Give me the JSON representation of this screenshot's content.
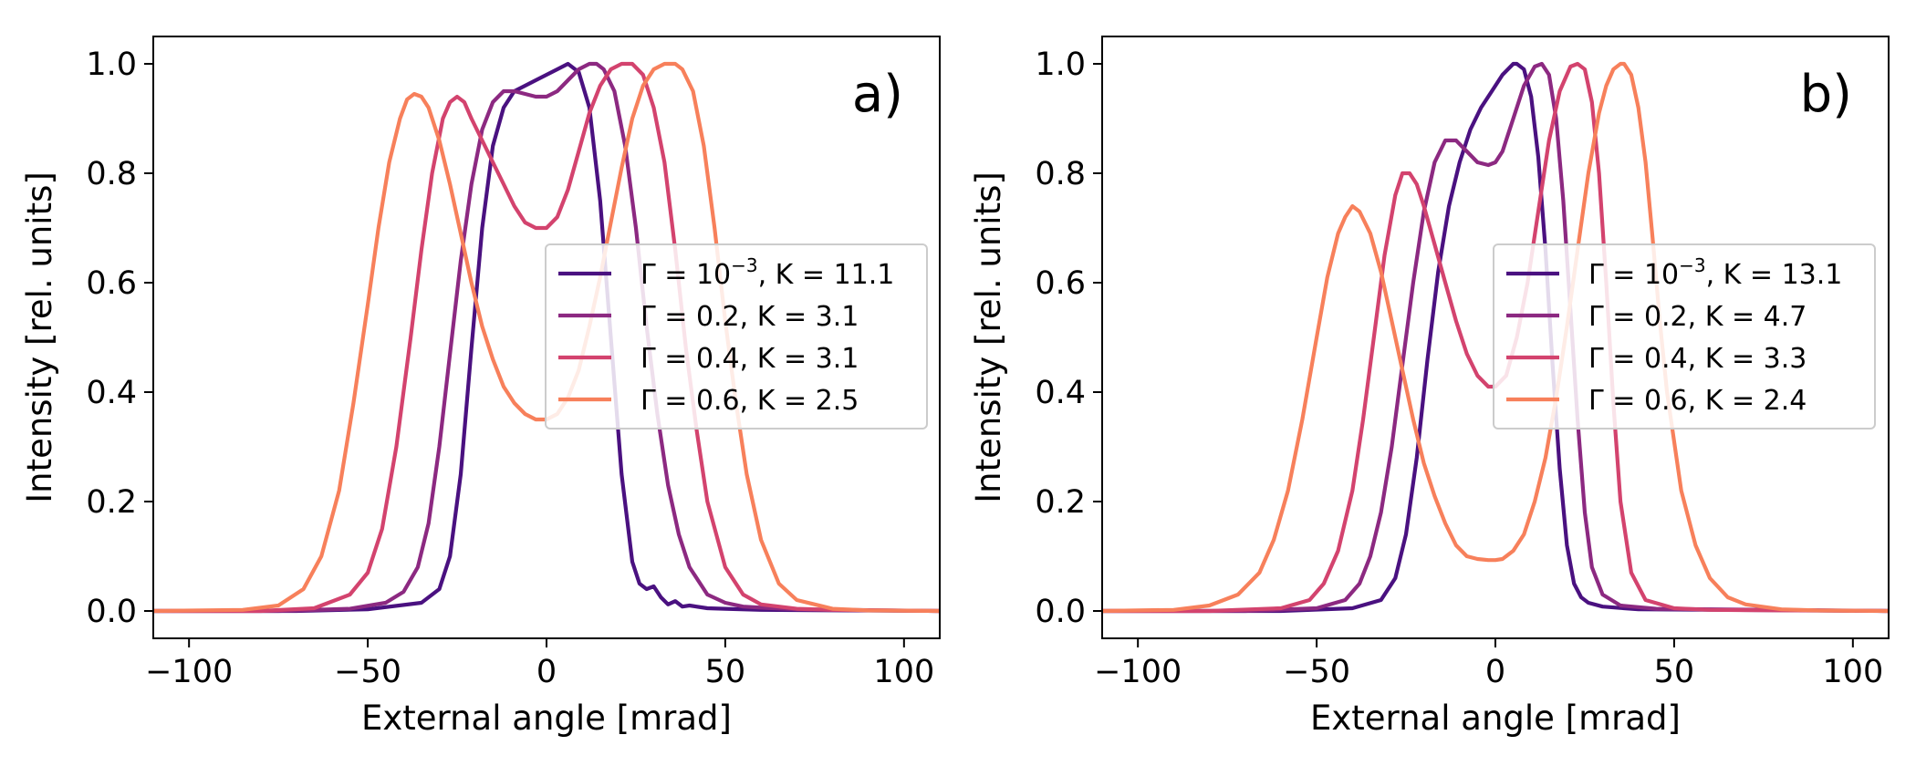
{
  "chart_data": [
    {
      "type": "line",
      "panel_label": "a)",
      "xlabel": "External angle [mrad]",
      "ylabel": "Intensity [rel. units]",
      "xlim": [
        -110,
        110
      ],
      "ylim": [
        -0.05,
        1.05
      ],
      "xticks": [
        -100,
        -50,
        0,
        50,
        100
      ],
      "xtick_labels": [
        "−100",
        "−50",
        "0",
        "50",
        "100"
      ],
      "yticks": [
        0.0,
        0.2,
        0.4,
        0.6,
        0.8,
        1.0
      ],
      "ytick_labels": [
        "0.0",
        "0.2",
        "0.4",
        "0.6",
        "0.8",
        "1.0"
      ],
      "grid": false,
      "legend_position": "center-right",
      "series": [
        {
          "gamma": "10",
          "exp": "−3",
          "name": "Γ = 10⁻³, K = 11.1",
          "label_suffix": ", K = 11.1",
          "color": "#4a1180",
          "x": [
            -110,
            -70,
            -50,
            -35,
            -30,
            -27,
            -24,
            -21,
            -18,
            -15,
            -12,
            -9,
            -6,
            -3,
            0,
            3,
            6,
            9,
            12,
            15,
            18,
            21,
            24,
            26,
            28,
            30,
            32,
            34,
            36,
            38,
            40,
            45,
            50,
            60,
            110
          ],
          "y": [
            0,
            0,
            0.003,
            0.015,
            0.04,
            0.1,
            0.25,
            0.48,
            0.7,
            0.85,
            0.92,
            0.95,
            0.96,
            0.97,
            0.98,
            0.99,
            1.0,
            0.985,
            0.92,
            0.75,
            0.5,
            0.25,
            0.09,
            0.05,
            0.04,
            0.045,
            0.025,
            0.012,
            0.018,
            0.008,
            0.01,
            0.005,
            0.004,
            0.002,
            0
          ]
        },
        {
          "gamma": "0.2",
          "exp": "",
          "name": "Γ = 0.2, K = 3.1",
          "label_suffix": ", K = 3.1",
          "color": "#8c2981",
          "x": [
            -110,
            -75,
            -55,
            -45,
            -40,
            -36,
            -33,
            -30,
            -27,
            -24,
            -21,
            -18,
            -15,
            -12,
            -9,
            -6,
            -3,
            0,
            3,
            6,
            9,
            12,
            14,
            16,
            19,
            22,
            25,
            28,
            31,
            34,
            37,
            40,
            45,
            50,
            55,
            60,
            70,
            110
          ],
          "y": [
            0,
            0,
            0.004,
            0.015,
            0.035,
            0.08,
            0.16,
            0.3,
            0.47,
            0.64,
            0.78,
            0.88,
            0.93,
            0.95,
            0.95,
            0.945,
            0.94,
            0.94,
            0.95,
            0.97,
            0.99,
            1.0,
            1.0,
            0.99,
            0.95,
            0.85,
            0.7,
            0.52,
            0.36,
            0.23,
            0.14,
            0.08,
            0.03,
            0.015,
            0.008,
            0.006,
            0.003,
            0
          ]
        },
        {
          "gamma": "0.4",
          "exp": "",
          "name": "Γ = 0.4, K = 3.1",
          "label_suffix": ", K = 3.1",
          "color": "#d3436e",
          "x": [
            -110,
            -80,
            -65,
            -55,
            -50,
            -46,
            -42,
            -38,
            -35,
            -32,
            -29,
            -27,
            -25,
            -23,
            -21,
            -18,
            -15,
            -12,
            -9,
            -6,
            -3,
            0,
            3,
            6,
            9,
            12,
            15,
            18,
            21,
            24,
            27,
            30,
            33,
            36,
            39,
            42,
            45,
            50,
            55,
            60,
            70,
            80,
            110
          ],
          "y": [
            0,
            0,
            0.005,
            0.03,
            0.07,
            0.15,
            0.3,
            0.5,
            0.66,
            0.8,
            0.9,
            0.93,
            0.94,
            0.93,
            0.9,
            0.86,
            0.82,
            0.78,
            0.74,
            0.71,
            0.7,
            0.7,
            0.72,
            0.77,
            0.84,
            0.91,
            0.96,
            0.99,
            1.0,
            1.0,
            0.98,
            0.92,
            0.82,
            0.66,
            0.48,
            0.33,
            0.2,
            0.08,
            0.03,
            0.012,
            0.004,
            0.002,
            0
          ]
        },
        {
          "gamma": "0.6",
          "exp": "",
          "name": "Γ = 0.6, K = 2.5",
          "label_suffix": ", K = 2.5",
          "color": "#f7805b",
          "x": [
            -110,
            -85,
            -75,
            -68,
            -63,
            -58,
            -54,
            -50,
            -47,
            -44,
            -41,
            -39,
            -37,
            -35,
            -33,
            -30,
            -27,
            -24,
            -21,
            -18,
            -15,
            -12,
            -9,
            -6,
            -3,
            0,
            3,
            6,
            9,
            12,
            15,
            18,
            21,
            24,
            27,
            30,
            33,
            35,
            36,
            38,
            41,
            44,
            47,
            50,
            53,
            56,
            60,
            65,
            70,
            80,
            90,
            110
          ],
          "y": [
            0,
            0.002,
            0.01,
            0.04,
            0.1,
            0.22,
            0.38,
            0.56,
            0.7,
            0.82,
            0.9,
            0.935,
            0.945,
            0.94,
            0.92,
            0.86,
            0.78,
            0.69,
            0.6,
            0.52,
            0.46,
            0.41,
            0.38,
            0.36,
            0.35,
            0.35,
            0.36,
            0.39,
            0.44,
            0.52,
            0.61,
            0.71,
            0.81,
            0.9,
            0.96,
            0.99,
            1.0,
            1.0,
            1.0,
            0.99,
            0.95,
            0.85,
            0.7,
            0.53,
            0.38,
            0.25,
            0.13,
            0.05,
            0.02,
            0.004,
            0.001,
            0
          ]
        }
      ]
    },
    {
      "type": "line",
      "panel_label": "b)",
      "xlabel": "External angle [mrad]",
      "ylabel": "Intensity [rel. units]",
      "xlim": [
        -110,
        110
      ],
      "ylim": [
        -0.05,
        1.05
      ],
      "xticks": [
        -100,
        -50,
        0,
        50,
        100
      ],
      "xtick_labels": [
        "−100",
        "−50",
        "0",
        "50",
        "100"
      ],
      "yticks": [
        0.0,
        0.2,
        0.4,
        0.6,
        0.8,
        1.0
      ],
      "ytick_labels": [
        "0.0",
        "0.2",
        "0.4",
        "0.6",
        "0.8",
        "1.0"
      ],
      "grid": false,
      "legend_position": "center-right",
      "series": [
        {
          "gamma": "10",
          "exp": "−3",
          "name": "Γ = 10⁻³, K = 13.1",
          "label_suffix": ", K = 13.1",
          "color": "#4a1180",
          "x": [
            -110,
            -60,
            -40,
            -32,
            -28,
            -25,
            -22,
            -19,
            -16,
            -13,
            -10,
            -7,
            -4,
            -1,
            2,
            5,
            6,
            8,
            10,
            12,
            14,
            16,
            18,
            20,
            22,
            24,
            26,
            30,
            40,
            110
          ],
          "y": [
            0,
            0,
            0.005,
            0.02,
            0.06,
            0.14,
            0.28,
            0.46,
            0.62,
            0.74,
            0.82,
            0.88,
            0.92,
            0.95,
            0.98,
            1.0,
            1.0,
            0.99,
            0.94,
            0.83,
            0.66,
            0.45,
            0.26,
            0.12,
            0.05,
            0.025,
            0.015,
            0.008,
            0.003,
            0
          ]
        },
        {
          "gamma": "0.2",
          "exp": "",
          "name": "Γ = 0.2, K = 4.7",
          "label_suffix": ", K = 4.7",
          "color": "#8c2981",
          "x": [
            -110,
            -70,
            -50,
            -42,
            -38,
            -35,
            -32,
            -29,
            -26,
            -23,
            -20,
            -17,
            -14,
            -11,
            -8,
            -5,
            -2,
            0,
            2,
            5,
            8,
            11,
            13,
            15,
            17,
            19,
            21,
            23,
            25,
            27,
            30,
            35,
            45,
            110
          ],
          "y": [
            0,
            0,
            0.005,
            0.02,
            0.05,
            0.1,
            0.18,
            0.3,
            0.45,
            0.6,
            0.73,
            0.82,
            0.86,
            0.86,
            0.84,
            0.82,
            0.815,
            0.82,
            0.84,
            0.9,
            0.96,
            0.995,
            1.0,
            0.98,
            0.9,
            0.75,
            0.55,
            0.35,
            0.18,
            0.08,
            0.03,
            0.01,
            0.004,
            0
          ]
        },
        {
          "gamma": "0.4",
          "exp": "",
          "name": "Γ = 0.4, K = 3.3",
          "label_suffix": ", K = 3.3",
          "color": "#d3436e",
          "x": [
            -110,
            -80,
            -60,
            -52,
            -48,
            -44,
            -40,
            -37,
            -34,
            -31,
            -28,
            -26,
            -24,
            -22,
            -20,
            -17,
            -14,
            -11,
            -8,
            -5,
            -2,
            0,
            3,
            6,
            9,
            12,
            15,
            18,
            21,
            23,
            25,
            27,
            29,
            31,
            33,
            35,
            38,
            42,
            50,
            60,
            110
          ],
          "y": [
            0,
            0,
            0.005,
            0.02,
            0.05,
            0.11,
            0.22,
            0.35,
            0.5,
            0.65,
            0.76,
            0.8,
            0.8,
            0.78,
            0.74,
            0.67,
            0.6,
            0.53,
            0.47,
            0.43,
            0.41,
            0.41,
            0.43,
            0.5,
            0.6,
            0.73,
            0.86,
            0.95,
            0.995,
            1.0,
            0.99,
            0.93,
            0.8,
            0.6,
            0.38,
            0.2,
            0.07,
            0.02,
            0.005,
            0.002,
            0
          ]
        },
        {
          "gamma": "0.6",
          "exp": "",
          "name": "Γ = 0.6, K = 2.4",
          "label_suffix": ", K = 2.4",
          "color": "#f7805b",
          "x": [
            -110,
            -90,
            -80,
            -72,
            -66,
            -62,
            -58,
            -54,
            -50,
            -47,
            -44,
            -42,
            -40,
            -38,
            -35,
            -32,
            -29,
            -26,
            -23,
            -20,
            -17,
            -14,
            -11,
            -8,
            -5,
            -2,
            0,
            2,
            5,
            8,
            11,
            14,
            17,
            20,
            23,
            26,
            29,
            31,
            33,
            35,
            36,
            38,
            40,
            42,
            44,
            46,
            48,
            52,
            56,
            60,
            65,
            70,
            80,
            90,
            110
          ],
          "y": [
            0,
            0.002,
            0.01,
            0.03,
            0.07,
            0.13,
            0.22,
            0.35,
            0.5,
            0.61,
            0.69,
            0.72,
            0.74,
            0.73,
            0.69,
            0.62,
            0.53,
            0.44,
            0.35,
            0.27,
            0.21,
            0.16,
            0.12,
            0.1,
            0.095,
            0.093,
            0.093,
            0.095,
            0.11,
            0.14,
            0.2,
            0.28,
            0.39,
            0.52,
            0.66,
            0.8,
            0.91,
            0.96,
            0.99,
            1.0,
            1.0,
            0.98,
            0.92,
            0.82,
            0.68,
            0.53,
            0.4,
            0.22,
            0.12,
            0.06,
            0.025,
            0.012,
            0.003,
            0.001,
            0
          ]
        }
      ]
    }
  ]
}
